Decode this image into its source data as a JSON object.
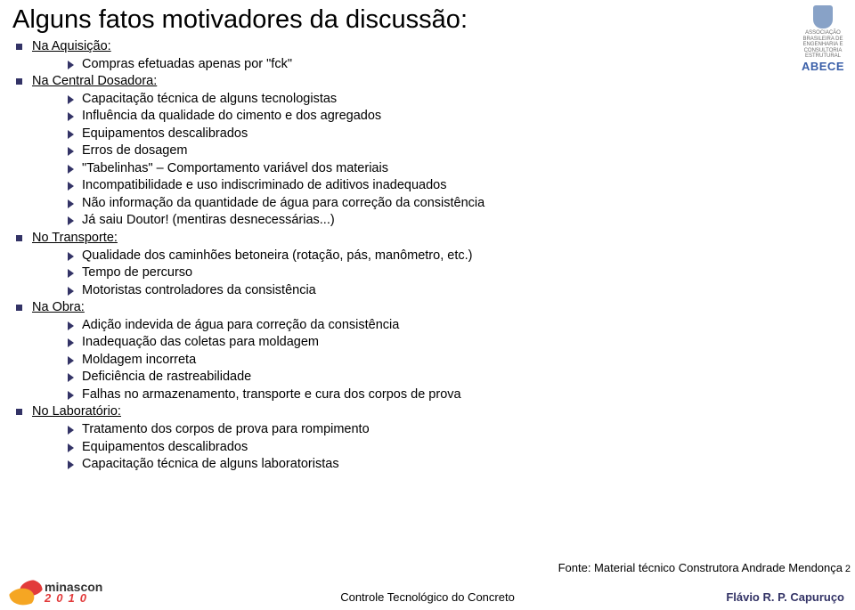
{
  "title": "Alguns fatos motivadores da discussão:",
  "logo_top": {
    "assoc_lines": [
      "ASSOCIAÇÃO",
      "BRASILEIRA DE",
      "ENGENHARIA E",
      "CONSULTORIA",
      "ESTRUTURAL"
    ],
    "abece": "ABECE"
  },
  "sections": {
    "s1": {
      "heading": "Na Aquisição:",
      "items": [
        "Compras efetuadas apenas por \"fck\""
      ]
    },
    "s2": {
      "heading": "Na Central Dosadora:",
      "items": [
        "Capacitação técnica de alguns tecnologistas",
        "Influência da qualidade do cimento e dos agregados",
        "Equipamentos descalibrados",
        "Erros de dosagem",
        "\"Tabelinhas\" – Comportamento variável dos materiais",
        "Incompatibilidade e uso indiscriminado de aditivos inadequados",
        "Não informação da quantidade de água para correção da consistência",
        "Já saiu Doutor! (mentiras desnecessárias...)"
      ]
    },
    "s3": {
      "heading": "No Transporte:",
      "items": [
        "Qualidade dos caminhões betoneira (rotação, pás, manômetro, etc.)",
        "Tempo de percurso",
        "Motoristas controladores da consistência"
      ]
    },
    "s4": {
      "heading": "Na Obra:",
      "items": [
        "Adição indevida de água para correção da consistência",
        "Inadequação das coletas para moldagem",
        "Moldagem incorreta",
        "Deficiência de rastreabilidade",
        "Falhas no armazenamento, transporte e cura dos corpos de prova"
      ]
    },
    "s5": {
      "heading": "No Laboratório:",
      "items": [
        "Tratamento dos corpos de prova para rompimento",
        "Equipamentos descalibrados",
        "Capacitação técnica de alguns laboratoristas"
      ]
    }
  },
  "source_note": "Fonte: Material técnico Construtora Andrade Mendonça",
  "page_number": "2",
  "footer": {
    "minascon_text": "minascon",
    "minascon_year": "2010",
    "center": "Controle Tecnológico do Concreto",
    "right": "Flávio R. P. Capuruço"
  },
  "colors": {
    "bullet": "#333366",
    "title": "#000000",
    "footer_right": "#333366",
    "abece": "#3a5fa8"
  }
}
